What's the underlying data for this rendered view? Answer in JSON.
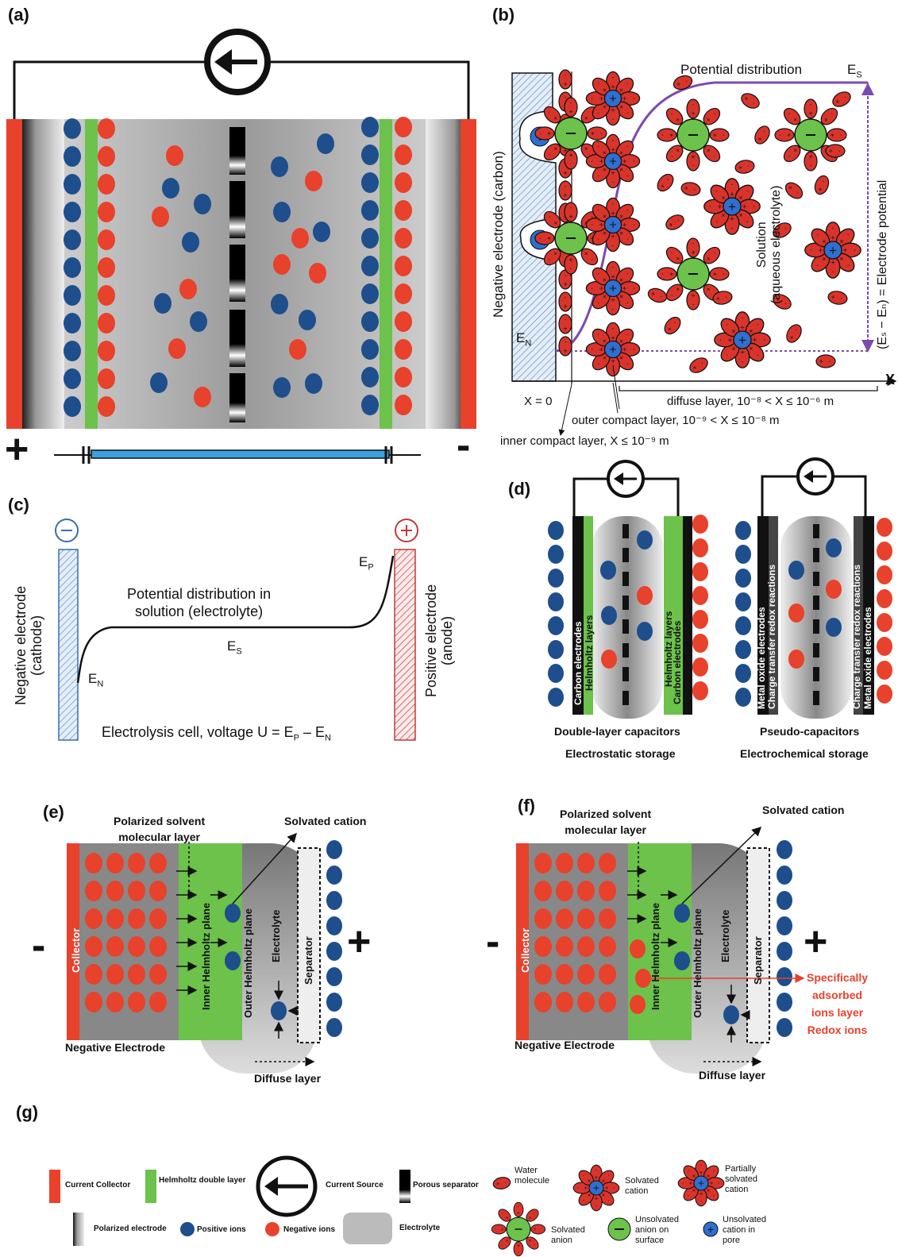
{
  "panels": {
    "a": {
      "label": "(a)",
      "plus": "+",
      "minus": "-"
    },
    "b": {
      "label": "(b)",
      "potential_distribution": "Potential distribution",
      "es": "E",
      "es_sub": "S",
      "en": "E",
      "en_sub": "N",
      "x_axis_letter": "X",
      "negative_electrode": "Negative electrode (carbon)",
      "solution": "Solution",
      "aqueous": "(aqueous electrolyte)",
      "electrode_potential": "(Eₛ − Eₙ) = Electrode potential",
      "x_eq_0": "X = 0",
      "diffuse_layer": "diffuse layer, 10⁻⁸ < X ≤ 10⁻⁶ m",
      "outer_compact": "outer compact layer, 10⁻⁹ < X ≤ 10⁻⁸ m",
      "inner_compact": "inner compact layer, X ≤ 10⁻⁹ m"
    },
    "c": {
      "label": "(c)",
      "negative_electrode": "Negative electrode",
      "cathode": "(cathode)",
      "positive_electrode": "Positive electrode",
      "anode": "(anode)",
      "potential_line1": "Potential distribution in",
      "potential_line2": "solution (electrolyte)",
      "ep": "E",
      "ep_sub": "P",
      "es": "E",
      "es_sub": "S",
      "en": "E",
      "en_sub": "N",
      "cell_voltage_prefix": "Electrolysis cell, voltage U = E",
      "cell_voltage_p": "P",
      "cell_voltage_mid": " – E",
      "cell_voltage_n": "N",
      "minus_sign": "−",
      "plus_sign": "+"
    },
    "d": {
      "label": "(d)",
      "left_label1": "Double-layer capacitors",
      "left_label2": "Electrostatic storage",
      "right_label1": "Pseudo-capacitors",
      "right_label2": "Electrochemical storage",
      "carbon_electrodes": "Carbon electrodes",
      "helmholtz_layers": "Helmholtz layers",
      "metal_oxide_electrodes": "Metal oxide electrodes",
      "charge_transfer": "Charge transfer redox reactions"
    },
    "e": {
      "label": "(e)",
      "polarized_solvent1": "Polarized solvent",
      "polarized_solvent2": "molecular layer",
      "solvated_cation": "Solvated cation",
      "collector": "Collector",
      "inner_helmholtz": "Inner Helmholtz plane",
      "outer_helmholtz": "Outer Helmholtz plane",
      "electrolyte": "Electrolyte",
      "separator": "Separator",
      "negative_electrode": "Negative Electrode",
      "diffuse_layer": "Diffuse layer",
      "minus": "-",
      "plus": "+"
    },
    "f": {
      "label": "(f)",
      "polarized_solvent1": "Polarized solvent",
      "polarized_solvent2": "molecular layer",
      "solvated_cation": "Solvated cation",
      "collector": "Collector",
      "inner_helmholtz": "Inner Helmholtz plane",
      "outer_helmholtz": "Outer Helmholtz plane",
      "electrolyte": "Electrolyte",
      "separator": "Separator",
      "negative_electrode": "Negative Electrode",
      "diffuse_layer": "Diffuse layer",
      "specific1": "Specifically",
      "specific2": "adsorbed",
      "specific3": "ions layer",
      "specific4": "Redox ions",
      "minus": "-",
      "plus": "+"
    },
    "g": {
      "label": "(g)",
      "current_collector": "Current Collector",
      "helmholtz_double_layer": "Helmholtz double layer",
      "current_source": "Current Source",
      "porous_separator": "Porous separator",
      "water_molecule1": "Water",
      "water_molecule2": "molecule",
      "solvated_cation1": "Solvated",
      "solvated_cation2": "cation",
      "partially1": "Partially",
      "partially2": "solvated",
      "partially3": "cation",
      "polarized_electrode": "Polarized electrode",
      "positive_ions": "Positive ions",
      "negative_ions": "Negative ions",
      "electrolyte": "Electrolyte",
      "solvated_anion1": "Solvated",
      "solvated_anion2": "anion",
      "unsolvated_anion1": "Unsolvated",
      "unsolvated_anion2": "anion on",
      "unsolvated_anion3": "surface",
      "unsolvated_cation1": "Unsolvated",
      "unsolvated_cation2": "cation in",
      "unsolvated_cation3": "pore"
    }
  },
  "colors": {
    "red": "#e8412c",
    "blue": "#1e4e8c",
    "green": "#6cc24a",
    "purple": "#7b4bb0",
    "black": "#111111"
  }
}
